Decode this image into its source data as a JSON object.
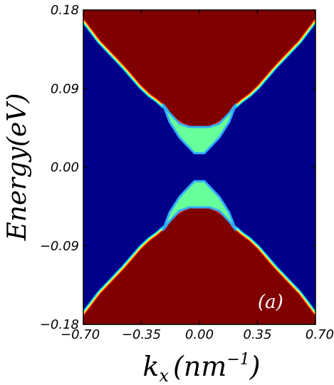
{
  "chart_data": {
    "type": "heatmap",
    "title": "",
    "xlabel_base": "k",
    "xlabel_sub": "x",
    "xlabel_paren_open": "(",
    "xlabel_unit": "nm",
    "xlabel_exp": "−1",
    "xlabel_paren_close": ")",
    "ylabel": "Energy(eV)",
    "panel_label": "(a)",
    "xlim": [
      -0.7,
      0.7
    ],
    "ylim": [
      -0.18,
      0.18
    ],
    "x_ticks": [
      -0.7,
      -0.35,
      0.0,
      0.35,
      0.7
    ],
    "x_tick_labels": [
      "−0.70",
      "−0.35",
      "0.00",
      "0.35",
      "0.70"
    ],
    "y_ticks": [
      0.18,
      0.09,
      0.0,
      -0.09,
      -0.18
    ],
    "y_tick_labels": [
      "0.18",
      "0.09",
      "0.00",
      "−0.09",
      "−0.18"
    ],
    "colormap": "jet",
    "colors": {
      "low": "#00008b",
      "high": "#800000",
      "gap_state": "#66ff99",
      "edge_band": "#33aaff"
    },
    "upper_band_edge": {
      "k": [
        -0.7,
        -0.6,
        -0.45,
        -0.35,
        -0.3,
        -0.25,
        -0.22,
        -0.2,
        -0.18,
        -0.15,
        -0.1,
        -0.05,
        0.0,
        0.05,
        0.1,
        0.15,
        0.18,
        0.2,
        0.22,
        0.25,
        0.3,
        0.35,
        0.45,
        0.6,
        0.7
      ],
      "E": [
        0.17,
        0.145,
        0.115,
        0.093,
        0.084,
        0.077,
        0.072,
        0.069,
        0.062,
        0.056,
        0.05,
        0.046,
        0.046,
        0.046,
        0.05,
        0.056,
        0.062,
        0.069,
        0.072,
        0.077,
        0.084,
        0.093,
        0.115,
        0.145,
        0.17
      ]
    },
    "lower_band_edge": {
      "k": [
        -0.7,
        -0.6,
        -0.45,
        -0.35,
        -0.3,
        -0.25,
        -0.22,
        -0.2,
        -0.18,
        -0.15,
        -0.1,
        -0.05,
        0.0,
        0.05,
        0.1,
        0.15,
        0.18,
        0.2,
        0.22,
        0.25,
        0.3,
        0.35,
        0.45,
        0.6,
        0.7
      ],
      "E": [
        -0.17,
        -0.145,
        -0.115,
        -0.093,
        -0.084,
        -0.077,
        -0.072,
        -0.069,
        -0.062,
        -0.056,
        -0.05,
        -0.046,
        -0.046,
        -0.046,
        -0.05,
        -0.056,
        -0.062,
        -0.069,
        -0.072,
        -0.077,
        -0.084,
        -0.093,
        -0.115,
        -0.145,
        -0.17
      ]
    },
    "upper_gap_state": {
      "k": [
        -0.22,
        -0.18,
        -0.12,
        -0.06,
        -0.03,
        0.0,
        0.03,
        0.06,
        0.12,
        0.18,
        0.22
      ],
      "E_top": [
        0.072,
        0.062,
        0.05,
        0.046,
        0.046,
        0.046,
        0.046,
        0.046,
        0.05,
        0.062,
        0.072
      ],
      "E_bottom": [
        0.072,
        0.052,
        0.034,
        0.022,
        0.016,
        0.016,
        0.016,
        0.022,
        0.034,
        0.052,
        0.072
      ]
    },
    "lower_gap_state": {
      "k": [
        -0.22,
        -0.18,
        -0.12,
        -0.06,
        -0.03,
        0.0,
        0.03,
        0.06,
        0.12,
        0.18,
        0.22
      ],
      "E_top": [
        -0.072,
        -0.052,
        -0.034,
        -0.022,
        -0.016,
        -0.016,
        -0.016,
        -0.022,
        -0.034,
        -0.052,
        -0.072
      ],
      "E_bottom": [
        -0.072,
        -0.062,
        -0.05,
        -0.046,
        -0.046,
        -0.046,
        -0.046,
        -0.046,
        -0.05,
        -0.062,
        -0.072
      ]
    }
  }
}
